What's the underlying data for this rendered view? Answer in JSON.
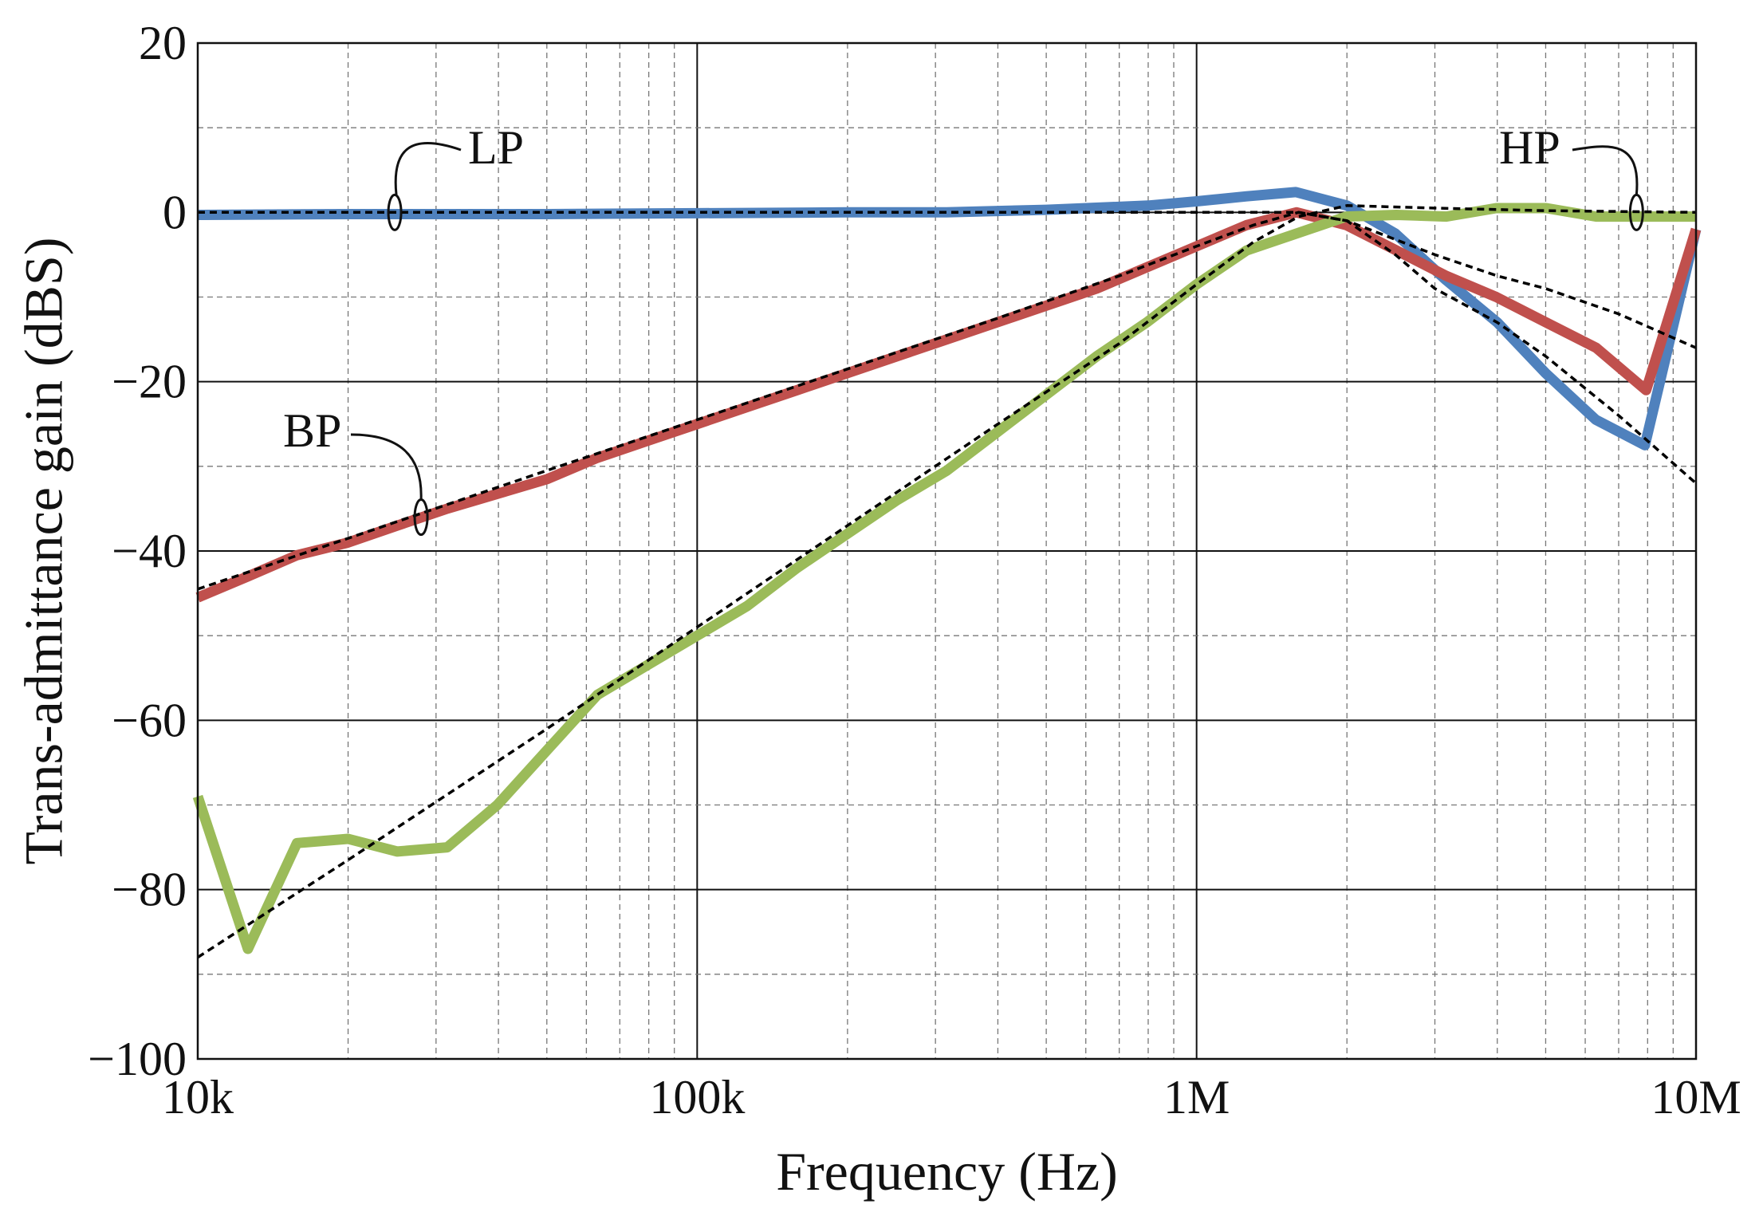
{
  "chart_data": {
    "type": "line",
    "title": "",
    "xlabel": "Frequency (Hz)",
    "ylabel": "Trans-admittance gain (dBS)",
    "x_scale": "log",
    "xlim": [
      10000,
      10000000
    ],
    "ylim": [
      -100,
      20
    ],
    "x_ticks": [
      {
        "value": 10000,
        "label": "10k"
      },
      {
        "value": 100000,
        "label": "100k"
      },
      {
        "value": 1000000,
        "label": "1M"
      },
      {
        "value": 10000000,
        "label": "10M"
      }
    ],
    "y_ticks": [
      {
        "value": 20,
        "label": "20"
      },
      {
        "value": 0,
        "label": "0"
      },
      {
        "value": -20,
        "label": "−20"
      },
      {
        "value": -40,
        "label": "−40"
      },
      {
        "value": -60,
        "label": "−60"
      },
      {
        "value": -80,
        "label": "−80"
      },
      {
        "value": -100,
        "label": "−100"
      }
    ],
    "grid": true,
    "legend": "none",
    "series": [
      {
        "color": "#4f81bd",
        "style": "solid",
        "x": [
          10000,
          20000,
          50000,
          100000,
          200000,
          316000,
          500000,
          800000,
          1000000,
          1260000,
          1580000,
          2000000,
          2500000,
          3160000,
          4000000,
          5000000,
          6300000,
          7900000,
          10000000
        ],
        "y": [
          -0.3,
          -0.2,
          -0.2,
          -0.1,
          0.0,
          0.0,
          0.3,
          0.8,
          1.3,
          1.9,
          2.4,
          0.8,
          -2.5,
          -8.0,
          -13.0,
          -19.0,
          -24.5,
          -27.5,
          -2.0
        ]
      },
      {
        "color": "#c0504d",
        "style": "solid",
        "x": [
          10000,
          12600,
          15800,
          20000,
          25100,
          31600,
          50100,
          63100,
          79400,
          100000,
          125900,
          158500,
          199500,
          251200,
          316200,
          398100,
          501200,
          631000,
          794300,
          1000000,
          1259000,
          1585000,
          1995000,
          2512000,
          3162000,
          3981000,
          5012000,
          6310000,
          7943000,
          10000000
        ],
        "y": [
          -45.5,
          -43.0,
          -40.5,
          -39.0,
          -37.0,
          -35.0,
          -31.5,
          -29.0,
          -27.0,
          -25.0,
          -23.0,
          -21.0,
          -19.0,
          -17.0,
          -15.0,
          -13.0,
          -11.0,
          -9.0,
          -6.5,
          -4.0,
          -1.5,
          0.0,
          -1.5,
          -4.5,
          -7.5,
          -10.0,
          -13.0,
          -16.0,
          -21.0,
          -2.0
        ]
      },
      {
        "color": "#9bbb59",
        "style": "solid",
        "x": [
          10000,
          12600,
          15800,
          20000,
          25100,
          31600,
          39800,
          50100,
          63100,
          79400,
          100000,
          125900,
          158500,
          199500,
          251200,
          316200,
          398100,
          501200,
          631000,
          794300,
          1000000,
          1259000,
          1585000,
          1995000,
          2512000,
          3162000,
          3981000,
          5012000,
          6310000,
          7943000,
          10000000
        ],
        "y": [
          -69.0,
          -87.0,
          -74.5,
          -74.0,
          -75.5,
          -75.0,
          -70.0,
          -63.5,
          -57.0,
          -53.5,
          -50.0,
          -46.5,
          -42.0,
          -38.0,
          -34.0,
          -30.5,
          -26.0,
          -21.5,
          -17.0,
          -13.0,
          -8.5,
          -4.5,
          -2.5,
          -0.5,
          -0.3,
          -0.5,
          0.5,
          0.5,
          -0.5,
          -0.5,
          -0.5
        ]
      },
      {
        "color": "#000000",
        "style": "dashed",
        "x": [
          10000,
          50000,
          100000,
          200000,
          400000,
          700000,
          1000000,
          1300000,
          1600000,
          2000000,
          2500000,
          3000000,
          4000000,
          5000000,
          7000000,
          10000000
        ],
        "y": [
          0,
          0,
          0,
          0,
          0,
          0,
          0,
          0,
          0,
          -1.0,
          -5.0,
          -9.0,
          -13.0,
          -17.0,
          -24.0,
          -32.0
        ]
      },
      {
        "color": "#000000",
        "style": "dashed",
        "x": [
          10000,
          20000,
          50000,
          100000,
          200000,
          400000,
          700000,
          1000000,
          1300000,
          1600000,
          2000000,
          3000000,
          4000000,
          5000000,
          7000000,
          10000000
        ],
        "y": [
          -44.5,
          -38.5,
          -30.5,
          -24.5,
          -18.5,
          -12.5,
          -7.5,
          -4.0,
          -1.5,
          0.0,
          -1.0,
          -5.0,
          -7.5,
          -9.0,
          -12.0,
          -16.0
        ]
      },
      {
        "color": "#000000",
        "style": "dashed",
        "x": [
          10000,
          20000,
          50000,
          100000,
          200000,
          400000,
          700000,
          1000000,
          1300000,
          1600000,
          2000000,
          3000000,
          5000000,
          10000000
        ],
        "y": [
          -88.0,
          -76.5,
          -61.0,
          -49.0,
          -37.0,
          -25.0,
          -15.5,
          -8.5,
          -3.5,
          -0.5,
          0.8,
          0.5,
          0.2,
          0.0
        ]
      }
    ],
    "annotations": [
      {
        "label": "LP",
        "anchor": [
          24800,
          0
        ]
      },
      {
        "label": "BP",
        "anchor": [
          28000,
          -36
        ]
      },
      {
        "label": "HP",
        "anchor": [
          7600000,
          0
        ]
      }
    ]
  }
}
